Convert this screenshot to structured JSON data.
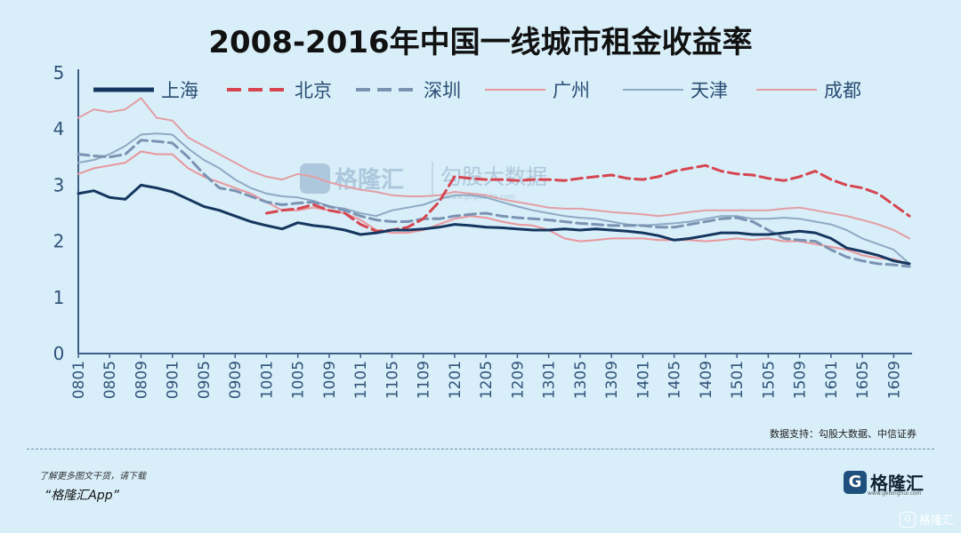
{
  "title": "2008-2016年中国一线城市租金收益率",
  "source": "数据支持：勾股大数据、中信证券",
  "promo": {
    "line1": "了解更多图文干货，请下载",
    "line2": "“格隆汇App”"
  },
  "brand": {
    "mark": "G",
    "name": "格隆汇",
    "url": "www.gelonghui.com"
  },
  "corner_badge": "格隆汇",
  "watermark": {
    "name": "格隆汇",
    "sub": "勾股大数据",
    "url": "www.gogudata.com"
  },
  "colors": {
    "background": "#d8eef9",
    "axis": "#3d5f86",
    "上海": "#15365f",
    "北京": "#d64550",
    "深圳": "#7b93b2",
    "广州": "#e9969b",
    "天津": "#8ea9c3",
    "成都": "#e39ea4"
  },
  "chart_data": {
    "type": "line",
    "title": "2008-2016年中国一线城市租金收益率",
    "xlabel": "",
    "ylabel": "",
    "ylim": [
      0,
      5
    ],
    "yticks": [
      0,
      1,
      2,
      3,
      4,
      5
    ],
    "x": [
      "0801",
      "0803",
      "0805",
      "0807",
      "0809",
      "0811",
      "0901",
      "0903",
      "0905",
      "0907",
      "0909",
      "0911",
      "1001",
      "1003",
      "1005",
      "1007",
      "1009",
      "1011",
      "1101",
      "1103",
      "1105",
      "1107",
      "1109",
      "1111",
      "1201",
      "1203",
      "1205",
      "1207",
      "1209",
      "1211",
      "1301",
      "1303",
      "1305",
      "1307",
      "1309",
      "1311",
      "1401",
      "1403",
      "1405",
      "1407",
      "1409",
      "1411",
      "1501",
      "1503",
      "1505",
      "1507",
      "1509",
      "1511",
      "1601",
      "1603",
      "1605",
      "1607",
      "1609",
      "1611"
    ],
    "xtick_labels": [
      "0801",
      "0805",
      "0809",
      "0901",
      "0905",
      "0909",
      "1001",
      "1005",
      "1009",
      "1101",
      "1105",
      "1109",
      "1201",
      "1205",
      "1209",
      "1301",
      "1305",
      "1309",
      "1401",
      "1405",
      "1409",
      "1501",
      "1505",
      "1509",
      "1601",
      "1605",
      "1609"
    ],
    "legend": [
      "上海",
      "北京",
      "深圳",
      "广州",
      "天津",
      "成都"
    ],
    "legend_placement": "top",
    "grid": false,
    "series": [
      {
        "name": "上海",
        "style": "solid-thick",
        "values": [
          2.85,
          2.9,
          2.78,
          2.75,
          3.0,
          2.95,
          2.88,
          2.75,
          2.62,
          2.55,
          2.45,
          2.35,
          2.28,
          2.22,
          2.33,
          2.28,
          2.25,
          2.2,
          2.12,
          2.15,
          2.2,
          2.2,
          2.22,
          2.25,
          2.3,
          2.28,
          2.25,
          2.24,
          2.22,
          2.2,
          2.2,
          2.22,
          2.2,
          2.22,
          2.2,
          2.18,
          2.15,
          2.1,
          2.02,
          2.05,
          2.1,
          2.15,
          2.15,
          2.12,
          2.12,
          2.15,
          2.18,
          2.15,
          2.05,
          1.88,
          1.82,
          1.75,
          1.65,
          1.6
        ]
      },
      {
        "name": "北京",
        "style": "dashed",
        "values": [
          null,
          null,
          null,
          null,
          null,
          null,
          null,
          null,
          null,
          null,
          null,
          null,
          2.5,
          2.55,
          2.58,
          2.65,
          2.55,
          2.5,
          2.3,
          2.18,
          2.2,
          2.25,
          2.4,
          2.7,
          3.15,
          3.12,
          3.1,
          3.1,
          3.08,
          3.1,
          3.1,
          3.08,
          3.12,
          3.15,
          3.18,
          3.12,
          3.1,
          3.15,
          3.25,
          3.3,
          3.35,
          3.25,
          3.2,
          3.18,
          3.12,
          3.08,
          3.15,
          3.25,
          3.1,
          3.0,
          2.95,
          2.85,
          2.65,
          2.45
        ]
      },
      {
        "name": "深圳",
        "style": "dashed",
        "values": [
          3.55,
          3.52,
          3.5,
          3.55,
          3.8,
          3.78,
          3.75,
          3.5,
          3.2,
          2.95,
          2.9,
          2.8,
          2.7,
          2.65,
          2.68,
          2.7,
          2.62,
          2.55,
          2.45,
          2.38,
          2.35,
          2.35,
          2.4,
          2.4,
          2.45,
          2.48,
          2.5,
          2.45,
          2.42,
          2.4,
          2.38,
          2.35,
          2.32,
          2.3,
          2.28,
          2.28,
          2.28,
          2.25,
          2.25,
          2.3,
          2.35,
          2.4,
          2.42,
          2.35,
          2.2,
          2.05,
          2.02,
          2.0,
          1.85,
          1.72,
          1.65,
          1.6,
          1.58,
          1.55
        ]
      },
      {
        "name": "广州",
        "style": "solid-thin",
        "values": [
          3.2,
          3.3,
          3.35,
          3.4,
          3.6,
          3.55,
          3.55,
          3.3,
          3.15,
          3.05,
          2.95,
          2.85,
          2.7,
          2.55,
          2.55,
          2.6,
          2.55,
          2.5,
          2.38,
          2.2,
          2.15,
          2.15,
          2.2,
          2.3,
          2.4,
          2.45,
          2.42,
          2.35,
          2.3,
          2.28,
          2.2,
          2.05,
          2.0,
          2.02,
          2.05,
          2.05,
          2.05,
          2.02,
          2.02,
          2.02,
          2.0,
          2.02,
          2.05,
          2.02,
          2.05,
          2.0,
          2.0,
          1.95,
          1.9,
          1.85,
          1.75,
          1.7,
          1.68,
          1.6
        ]
      },
      {
        "name": "天津",
        "style": "solid-thin",
        "values": [
          3.4,
          3.45,
          3.55,
          3.7,
          3.9,
          3.92,
          3.9,
          3.65,
          3.45,
          3.3,
          3.1,
          2.95,
          2.85,
          2.8,
          2.78,
          2.72,
          2.62,
          2.58,
          2.5,
          2.45,
          2.55,
          2.6,
          2.65,
          2.75,
          2.82,
          2.82,
          2.78,
          2.7,
          2.62,
          2.55,
          2.5,
          2.45,
          2.42,
          2.4,
          2.35,
          2.3,
          2.28,
          2.3,
          2.32,
          2.35,
          2.4,
          2.45,
          2.45,
          2.4,
          2.4,
          2.42,
          2.4,
          2.35,
          2.3,
          2.2,
          2.05,
          1.95,
          1.85,
          1.6
        ]
      },
      {
        "name": "成都",
        "style": "solid-thin",
        "values": [
          4.2,
          4.35,
          4.3,
          4.35,
          4.55,
          4.2,
          4.15,
          3.85,
          3.7,
          3.55,
          3.4,
          3.25,
          3.15,
          3.1,
          3.2,
          3.15,
          3.05,
          2.98,
          2.92,
          2.88,
          2.82,
          2.8,
          2.8,
          2.82,
          2.88,
          2.85,
          2.82,
          2.75,
          2.7,
          2.65,
          2.6,
          2.58,
          2.58,
          2.55,
          2.52,
          2.5,
          2.48,
          2.45,
          2.48,
          2.52,
          2.55,
          2.55,
          2.55,
          2.55,
          2.55,
          2.58,
          2.6,
          2.55,
          2.5,
          2.45,
          2.38,
          2.3,
          2.2,
          2.05
        ]
      }
    ]
  }
}
